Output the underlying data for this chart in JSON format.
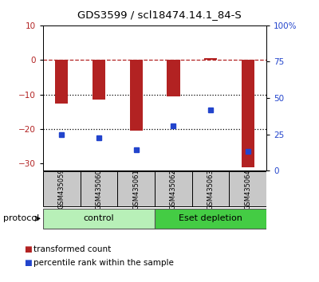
{
  "title": "GDS3599 / scl18474.14.1_84-S",
  "samples": [
    "GSM435059",
    "GSM435060",
    "GSM435061",
    "GSM435062",
    "GSM435063",
    "GSM435064"
  ],
  "red_values": [
    -12.5,
    -11.5,
    -20.5,
    -10.5,
    0.5,
    -31.0
  ],
  "blue_values": [
    -21.5,
    -22.5,
    -26.0,
    -19.0,
    -14.5,
    -26.5
  ],
  "ylim_left": [
    -32,
    10
  ],
  "ylim_right": [
    0,
    100
  ],
  "yticks_left": [
    10,
    0,
    -10,
    -20,
    -30
  ],
  "yticks_right": [
    100,
    75,
    50,
    25,
    0
  ],
  "ytick_labels_right": [
    "100%",
    "75",
    "50",
    "25",
    "0"
  ],
  "control_label": "control",
  "eset_label": "Eset depletion",
  "protocol_label": "protocol",
  "legend_red": "transformed count",
  "legend_blue": "percentile rank within the sample",
  "bar_width": 0.35,
  "red_color": "#b22222",
  "blue_color": "#2244cc",
  "control_bg": "#b8f0b8",
  "eset_bg": "#44cc44",
  "sample_bg": "#c8c8c8"
}
